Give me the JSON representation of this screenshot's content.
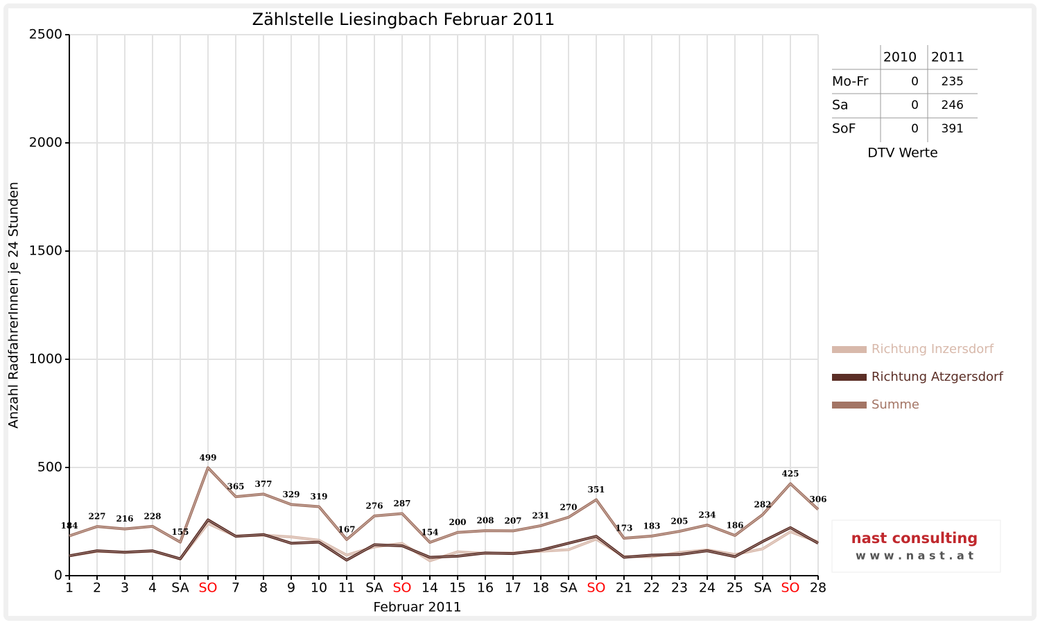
{
  "chart_data": {
    "type": "line",
    "title": "Zählstelle Liesingbach Februar 2011",
    "x_label": "Februar 2011",
    "y_label": "Anzahl RadfahrerInnen je 24 Stunden",
    "categories": [
      "1",
      "2",
      "3",
      "4",
      "SA",
      "SO",
      "7",
      "8",
      "9",
      "10",
      "11",
      "SA",
      "SO",
      "14",
      "15",
      "16",
      "17",
      "18",
      "SA",
      "SO",
      "21",
      "22",
      "23",
      "24",
      "25",
      "SA",
      "SO",
      "28"
    ],
    "category_colors": [
      "#000000",
      "#000000",
      "#000000",
      "#000000",
      "#000000",
      "#ff0000",
      "#000000",
      "#000000",
      "#000000",
      "#000000",
      "#000000",
      "#000000",
      "#ff0000",
      "#000000",
      "#000000",
      "#000000",
      "#000000",
      "#000000",
      "#000000",
      "#ff0000",
      "#000000",
      "#000000",
      "#000000",
      "#000000",
      "#000000",
      "#000000",
      "#ff0000",
      "#000000"
    ],
    "series": [
      {
        "name": "Richtung Inzersdorf",
        "color": "#d8b9ab",
        "values": [
          92,
          112,
          108,
          113,
          77,
          241,
          183,
          187,
          179,
          164,
          95,
          133,
          149,
          69,
          110,
          103,
          105,
          113,
          120,
          169,
          88,
          88,
          107,
          119,
          98,
          124,
          203,
          156
        ]
      },
      {
        "name": "Richtung Atzgersdorf",
        "color": "#5b2e26",
        "values": [
          92,
          115,
          108,
          115,
          78,
          258,
          182,
          190,
          150,
          155,
          72,
          143,
          138,
          85,
          90,
          105,
          102,
          118,
          150,
          182,
          85,
          95,
          98,
          115,
          88,
          158,
          222,
          150
        ]
      },
      {
        "name": "Summe",
        "color": "#a37565",
        "data_labels": true,
        "values": [
          184,
          227,
          216,
          228,
          155,
          499,
          365,
          377,
          329,
          319,
          167,
          276,
          287,
          154,
          200,
          208,
          207,
          231,
          270,
          351,
          173,
          183,
          205,
          234,
          186,
          282,
          425,
          306
        ]
      }
    ],
    "ylim": [
      0,
      2500
    ],
    "yticks": [
      0,
      500,
      1000,
      1500,
      2000,
      2500
    ],
    "grid": true,
    "legend": "right",
    "table": {
      "columns": [
        "2010",
        "2011"
      ],
      "rows": [
        {
          "label": "Mo-Fr",
          "values": [
            "0",
            "235"
          ]
        },
        {
          "label": "Sa",
          "values": [
            "0",
            "246"
          ]
        },
        {
          "label": "SoF",
          "values": [
            "0",
            "391"
          ]
        }
      ],
      "caption": "DTV Werte"
    },
    "logo": {
      "name": "nast consulting",
      "url": "w w w . n a s t . a t"
    }
  }
}
